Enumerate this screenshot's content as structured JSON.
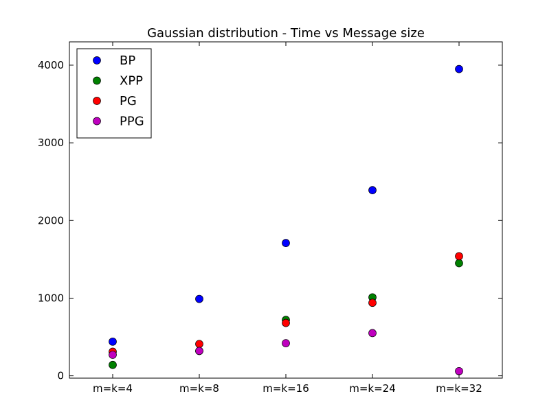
{
  "chart_data": {
    "type": "scatter",
    "title": "Gaussian distribution - Time vs Message size",
    "xlabel": "",
    "ylabel": "",
    "categories": [
      "m=k=4",
      "m=k=8",
      "m=k=16",
      "m=k=24",
      "m=k=32"
    ],
    "ylim": [
      -30,
      4300
    ],
    "yticks": [
      0,
      1000,
      2000,
      3000,
      4000
    ],
    "grid": false,
    "legend_position": "top-left",
    "series": [
      {
        "name": "BP",
        "color": "#0000ff",
        "values": [
          440,
          990,
          1710,
          2390,
          3950
        ]
      },
      {
        "name": "XPP",
        "color": "#008000",
        "values": [
          140,
          320,
          720,
          1010,
          1450
        ]
      },
      {
        "name": "PG",
        "color": "#ff0000",
        "values": [
          310,
          410,
          680,
          940,
          1540
        ]
      },
      {
        "name": "PPG",
        "color": "#bf00bf",
        "values": [
          270,
          320,
          420,
          550,
          60
        ]
      }
    ]
  }
}
